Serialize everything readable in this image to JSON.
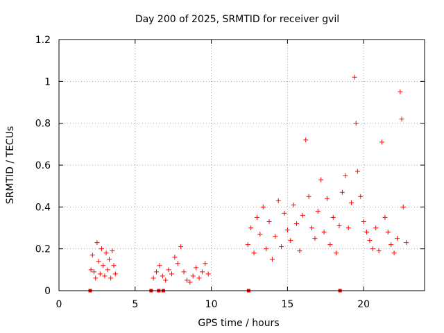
{
  "chart_data": {
    "type": "scatter",
    "title": "Day 200 of 2025, SRMTID for receiver gvil",
    "xlabel": "GPS time / hours",
    "ylabel": "SRMTID / TECUs",
    "xlim": [
      0,
      24
    ],
    "ylim": [
      0,
      1.2
    ],
    "x_ticks": [
      0,
      5,
      10,
      15,
      20
    ],
    "x_tick_labels": [
      "0",
      "5",
      "10",
      "15",
      "20"
    ],
    "y_ticks": [
      0,
      0.2,
      0.4,
      0.6,
      0.8,
      1.0,
      1.2
    ],
    "y_tick_labels": [
      "0",
      "0.2",
      "0.4",
      "0.6",
      "0.8",
      "1",
      "1.2"
    ],
    "grid": true,
    "marker": "plus",
    "color": "#ff0000",
    "square_markers_at_zero": [
      2.05,
      6.05,
      6.55,
      6.85,
      12.45,
      18.45
    ],
    "series": [
      {
        "name": "SRMTID",
        "segments": [
          {
            "x": [
              2.1,
              2.2,
              2.3,
              2.4,
              2.5,
              2.6,
              2.7,
              2.8,
              2.9,
              3.0,
              3.1,
              3.2,
              3.3,
              3.4,
              3.5,
              3.6,
              3.7
            ],
            "y": [
              0.1,
              0.17,
              0.09,
              0.06,
              0.23,
              0.14,
              0.08,
              0.2,
              0.12,
              0.07,
              0.18,
              0.1,
              0.15,
              0.06,
              0.19,
              0.12,
              0.08
            ]
          },
          {
            "x": [
              6.2,
              6.4,
              6.6,
              6.8,
              7.0,
              7.2,
              7.4,
              7.6,
              7.8,
              8.0,
              8.2,
              8.4,
              8.6,
              8.8,
              9.0,
              9.2,
              9.4,
              9.6,
              9.8
            ],
            "y": [
              0.06,
              0.09,
              0.12,
              0.07,
              0.05,
              0.1,
              0.08,
              0.16,
              0.13,
              0.21,
              0.09,
              0.05,
              0.04,
              0.07,
              0.11,
              0.06,
              0.09,
              0.13,
              0.08
            ]
          },
          {
            "x": [
              12.4,
              12.6,
              12.8,
              13.0,
              13.2,
              13.4,
              13.6,
              13.8,
              14.0,
              14.2,
              14.4,
              14.6,
              14.8,
              15.0,
              15.2,
              15.4,
              15.6,
              15.8,
              16.0,
              16.2,
              16.4,
              16.6,
              16.8,
              17.0,
              17.2,
              17.4,
              17.6,
              17.8,
              18.0,
              18.2,
              18.4,
              18.6,
              18.8,
              19.0,
              19.2,
              19.4,
              19.5,
              19.6,
              19.8,
              20.0,
              20.2,
              20.4,
              20.6,
              20.8,
              21.0,
              21.2,
              21.4,
              21.6,
              21.8,
              22.0,
              22.2,
              22.4,
              22.5,
              22.6,
              22.8
            ],
            "y": [
              0.22,
              0.3,
              0.18,
              0.35,
              0.27,
              0.4,
              0.2,
              0.33,
              0.15,
              0.26,
              0.43,
              0.21,
              0.37,
              0.29,
              0.24,
              0.41,
              0.32,
              0.19,
              0.36,
              0.72,
              0.45,
              0.3,
              0.25,
              0.38,
              0.53,
              0.28,
              0.44,
              0.22,
              0.35,
              0.18,
              0.31,
              0.47,
              0.55,
              0.3,
              0.42,
              1.02,
              0.8,
              0.57,
              0.45,
              0.33,
              0.28,
              0.24,
              0.2,
              0.3,
              0.19,
              0.71,
              0.35,
              0.28,
              0.22,
              0.18,
              0.25,
              0.95,
              0.82,
              0.4,
              0.23
            ]
          }
        ]
      }
    ]
  }
}
